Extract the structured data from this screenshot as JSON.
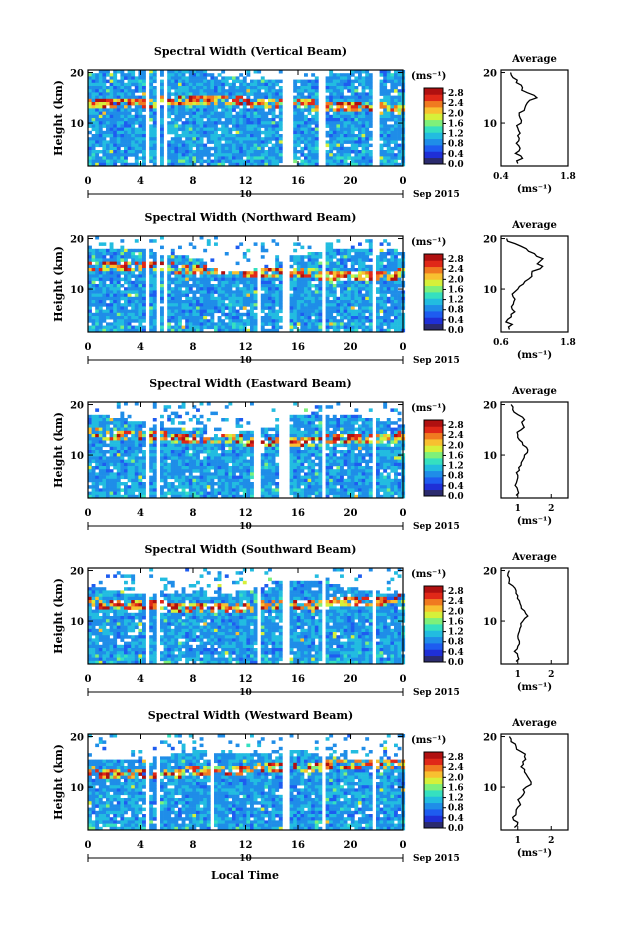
{
  "figure": {
    "xlabel": "Local Time",
    "colorbar_unit": "(ms⁻¹)",
    "colorbar_ticks": [
      "0.0",
      "0.4",
      "0.8",
      "1.2",
      "1.6",
      "2.0",
      "2.4",
      "2.8"
    ],
    "colorbar_range": [
      0,
      3.0
    ],
    "date_left": "10",
    "date_right": "Sep 2015",
    "avg_title": "Average",
    "avg_unit": "(ms⁻¹)",
    "colormap": [
      "#2b2b6e",
      "#1f2fd6",
      "#1e5cf0",
      "#1f8de8",
      "#22bce0",
      "#35e0c0",
      "#7ef07a",
      "#d6f03a",
      "#f8c030",
      "#f07a20",
      "#e02818",
      "#b01010"
    ]
  },
  "chart_data": [
    {
      "type": "heatmap",
      "title": "Spectral Width (Vertical Beam)",
      "ylabel": "Height (km)",
      "x_ticks": [
        "0",
        "4",
        "8",
        "12",
        "16",
        "20",
        "0"
      ],
      "xlim": [
        0,
        24
      ],
      "y_ticks": [
        "10",
        "20"
      ],
      "ylim": [
        1.5,
        20.5
      ],
      "data_gaps_local_time": [
        [
          4.2,
          4.5
        ],
        [
          5.1,
          5.3
        ],
        [
          5.6,
          5.9
        ],
        [
          14.6,
          15.4
        ],
        [
          17.5,
          17.9
        ],
        [
          21.6,
          22.0
        ]
      ],
      "average_profile": {
        "x_ticks": [
          "0.4",
          "1.8"
        ],
        "xlim": [
          0.4,
          1.8
        ],
        "height_km": [
          2,
          3,
          4,
          5,
          6,
          7,
          8,
          9,
          10,
          11,
          12,
          13,
          14,
          15,
          16,
          17,
          18,
          19,
          20
        ],
        "values": [
          0.75,
          0.85,
          0.7,
          0.8,
          0.72,
          0.78,
          0.8,
          0.75,
          0.82,
          0.8,
          0.78,
          0.9,
          0.95,
          1.15,
          0.95,
          0.85,
          0.72,
          0.65,
          0.6
        ]
      }
    },
    {
      "type": "heatmap",
      "title": "Spectral Width (Northward Beam)",
      "ylabel": "Height (km)",
      "x_ticks": [
        "0",
        "4",
        "8",
        "12",
        "16",
        "20",
        "0"
      ],
      "xlim": [
        0,
        24
      ],
      "y_ticks": [
        "10",
        "20"
      ],
      "ylim": [
        1.5,
        20.5
      ],
      "data_gaps_local_time": [
        [
          4.2,
          4.5
        ],
        [
          5.0,
          5.3
        ],
        [
          5.7,
          6.0
        ],
        [
          12.8,
          13.1
        ],
        [
          14.6,
          15.2
        ],
        [
          17.7,
          18.1
        ],
        [
          21.6,
          21.9
        ]
      ],
      "average_profile": {
        "x_ticks": [
          "0.6",
          "1.8"
        ],
        "xlim": [
          0.6,
          1.8
        ],
        "height_km": [
          2,
          3,
          4,
          5,
          6,
          7,
          8,
          9,
          10,
          11,
          12,
          13,
          14,
          15,
          16,
          17,
          18,
          19,
          20
        ],
        "values": [
          0.75,
          0.8,
          0.72,
          0.78,
          0.8,
          0.82,
          0.85,
          0.8,
          0.9,
          1.0,
          1.1,
          1.15,
          1.3,
          1.25,
          1.35,
          1.2,
          1.05,
          0.85,
          0.7
        ]
      }
    },
    {
      "type": "heatmap",
      "title": "Spectral Width (Eastward Beam)",
      "ylabel": "Height (km)",
      "x_ticks": [
        "0",
        "4",
        "8",
        "12",
        "16",
        "20",
        "0"
      ],
      "xlim": [
        0,
        24
      ],
      "y_ticks": [
        "10",
        "20"
      ],
      "ylim": [
        1.5,
        20.5
      ],
      "data_gaps_local_time": [
        [
          4.2,
          4.5
        ],
        [
          5.1,
          5.4
        ],
        [
          12.6,
          12.9
        ],
        [
          14.5,
          15.2
        ],
        [
          17.7,
          18.0
        ],
        [
          21.6,
          21.9
        ]
      ],
      "average_profile": {
        "x_ticks": [
          "1",
          "2"
        ],
        "xlim": [
          0.5,
          2.5
        ],
        "height_km": [
          2,
          3,
          4,
          5,
          6,
          7,
          8,
          9,
          10,
          11,
          12,
          13,
          14,
          15,
          16,
          17,
          18,
          19,
          20
        ],
        "values": [
          0.95,
          1.0,
          0.92,
          0.98,
          1.0,
          1.05,
          1.1,
          1.15,
          1.2,
          1.3,
          1.15,
          1.05,
          1.0,
          1.1,
          1.15,
          1.2,
          1.0,
          0.85,
          0.8
        ]
      }
    },
    {
      "type": "heatmap",
      "title": "Spectral Width (Southward Beam)",
      "ylabel": "Height (km)",
      "x_ticks": [
        "0",
        "4",
        "8",
        "12",
        "16",
        "20",
        "0"
      ],
      "xlim": [
        0,
        24
      ],
      "y_ticks": [
        "10",
        "20"
      ],
      "ylim": [
        1.5,
        20.5
      ],
      "data_gaps_local_time": [
        [
          4.2,
          4.5
        ],
        [
          5.1,
          5.4
        ],
        [
          12.7,
          13.0
        ],
        [
          14.6,
          15.1
        ],
        [
          17.7,
          18.0
        ],
        [
          21.6,
          21.9
        ]
      ],
      "average_profile": {
        "x_ticks": [
          "1",
          "2"
        ],
        "xlim": [
          0.5,
          2.5
        ],
        "height_km": [
          2,
          3,
          4,
          5,
          6,
          7,
          8,
          9,
          10,
          11,
          12,
          13,
          14,
          15,
          16,
          17,
          18,
          19,
          20
        ],
        "values": [
          0.95,
          1.0,
          0.9,
          1.0,
          1.05,
          1.0,
          1.05,
          1.1,
          1.15,
          1.3,
          1.2,
          1.1,
          1.05,
          1.0,
          0.95,
          0.85,
          0.75,
          0.7,
          0.75
        ]
      }
    },
    {
      "type": "heatmap",
      "title": "Spectral Width (Westward Beam)",
      "ylabel": "Height (km)",
      "x_ticks": [
        "0",
        "4",
        "8",
        "12",
        "16",
        "20",
        "0"
      ],
      "xlim": [
        0,
        24
      ],
      "y_ticks": [
        "10",
        "20"
      ],
      "ylim": [
        1.5,
        20.5
      ],
      "data_gaps_local_time": [
        [
          4.2,
          4.5
        ],
        [
          5.1,
          5.4
        ],
        [
          9.1,
          9.4
        ],
        [
          14.6,
          15.1
        ],
        [
          17.6,
          17.9
        ],
        [
          21.6,
          21.9
        ]
      ],
      "average_profile": {
        "x_ticks": [
          "1",
          "2"
        ],
        "xlim": [
          0.5,
          2.5
        ],
        "height_km": [
          2,
          3,
          4,
          5,
          6,
          7,
          8,
          9,
          10,
          11,
          12,
          13,
          14,
          15,
          16,
          17,
          18,
          19,
          20
        ],
        "values": [
          0.9,
          1.0,
          0.85,
          0.95,
          1.0,
          1.05,
          1.1,
          1.2,
          1.25,
          1.4,
          1.3,
          1.2,
          1.1,
          1.15,
          1.2,
          1.1,
          0.95,
          0.8,
          0.75
        ]
      }
    }
  ]
}
